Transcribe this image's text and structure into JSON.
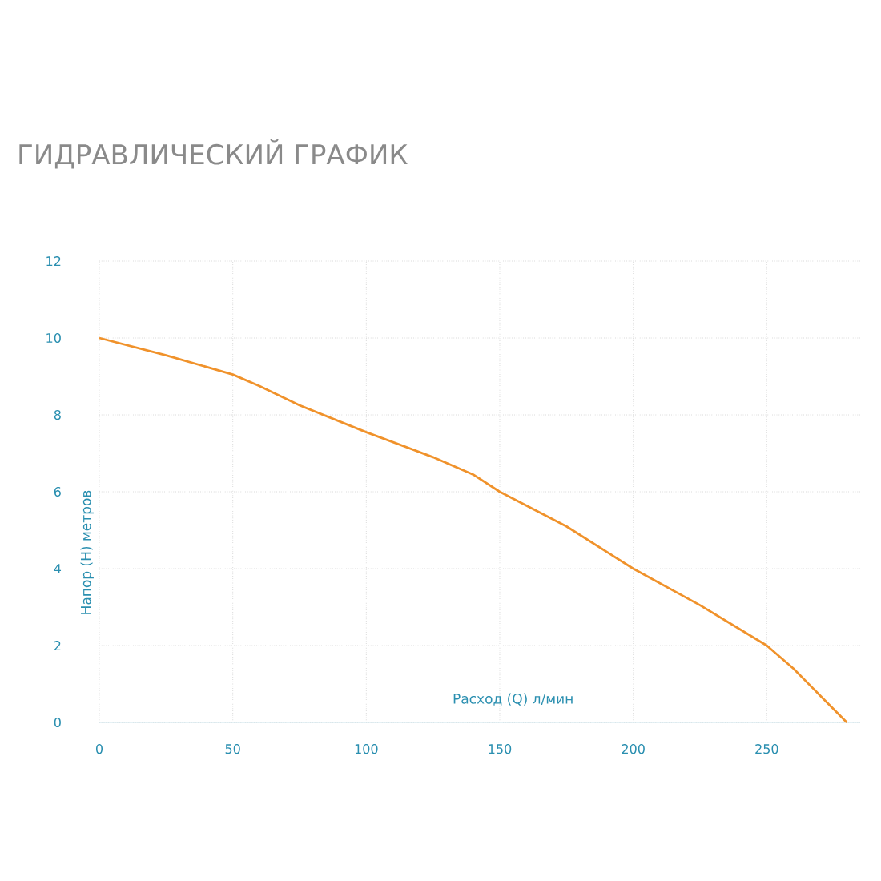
{
  "chart_data": {
    "type": "line",
    "title": "ГИДРАВЛИЧЕСКИЙ ГРАФИК",
    "xlabel": "Расход (Q) л/мин",
    "ylabel": "Напор (H) метров",
    "x": [
      0,
      25,
      50,
      60,
      75,
      100,
      125,
      140,
      150,
      175,
      200,
      225,
      250,
      260,
      270,
      280
    ],
    "series": [
      {
        "color": "#f0922b",
        "values": [
          10,
          9.55,
          9.05,
          8.75,
          8.25,
          7.55,
          6.9,
          6.45,
          6.0,
          5.1,
          4.0,
          3.05,
          2.0,
          1.4,
          0.7,
          0
        ]
      }
    ],
    "xlim": [
      0,
      285
    ],
    "ylim": [
      0,
      12
    ],
    "xticks": [
      0,
      50,
      100,
      150,
      200,
      250
    ],
    "yticks": [
      0,
      2,
      4,
      6,
      8,
      10,
      12
    ],
    "grid": true,
    "legend": false,
    "marker": "none",
    "line_style": "solid"
  }
}
